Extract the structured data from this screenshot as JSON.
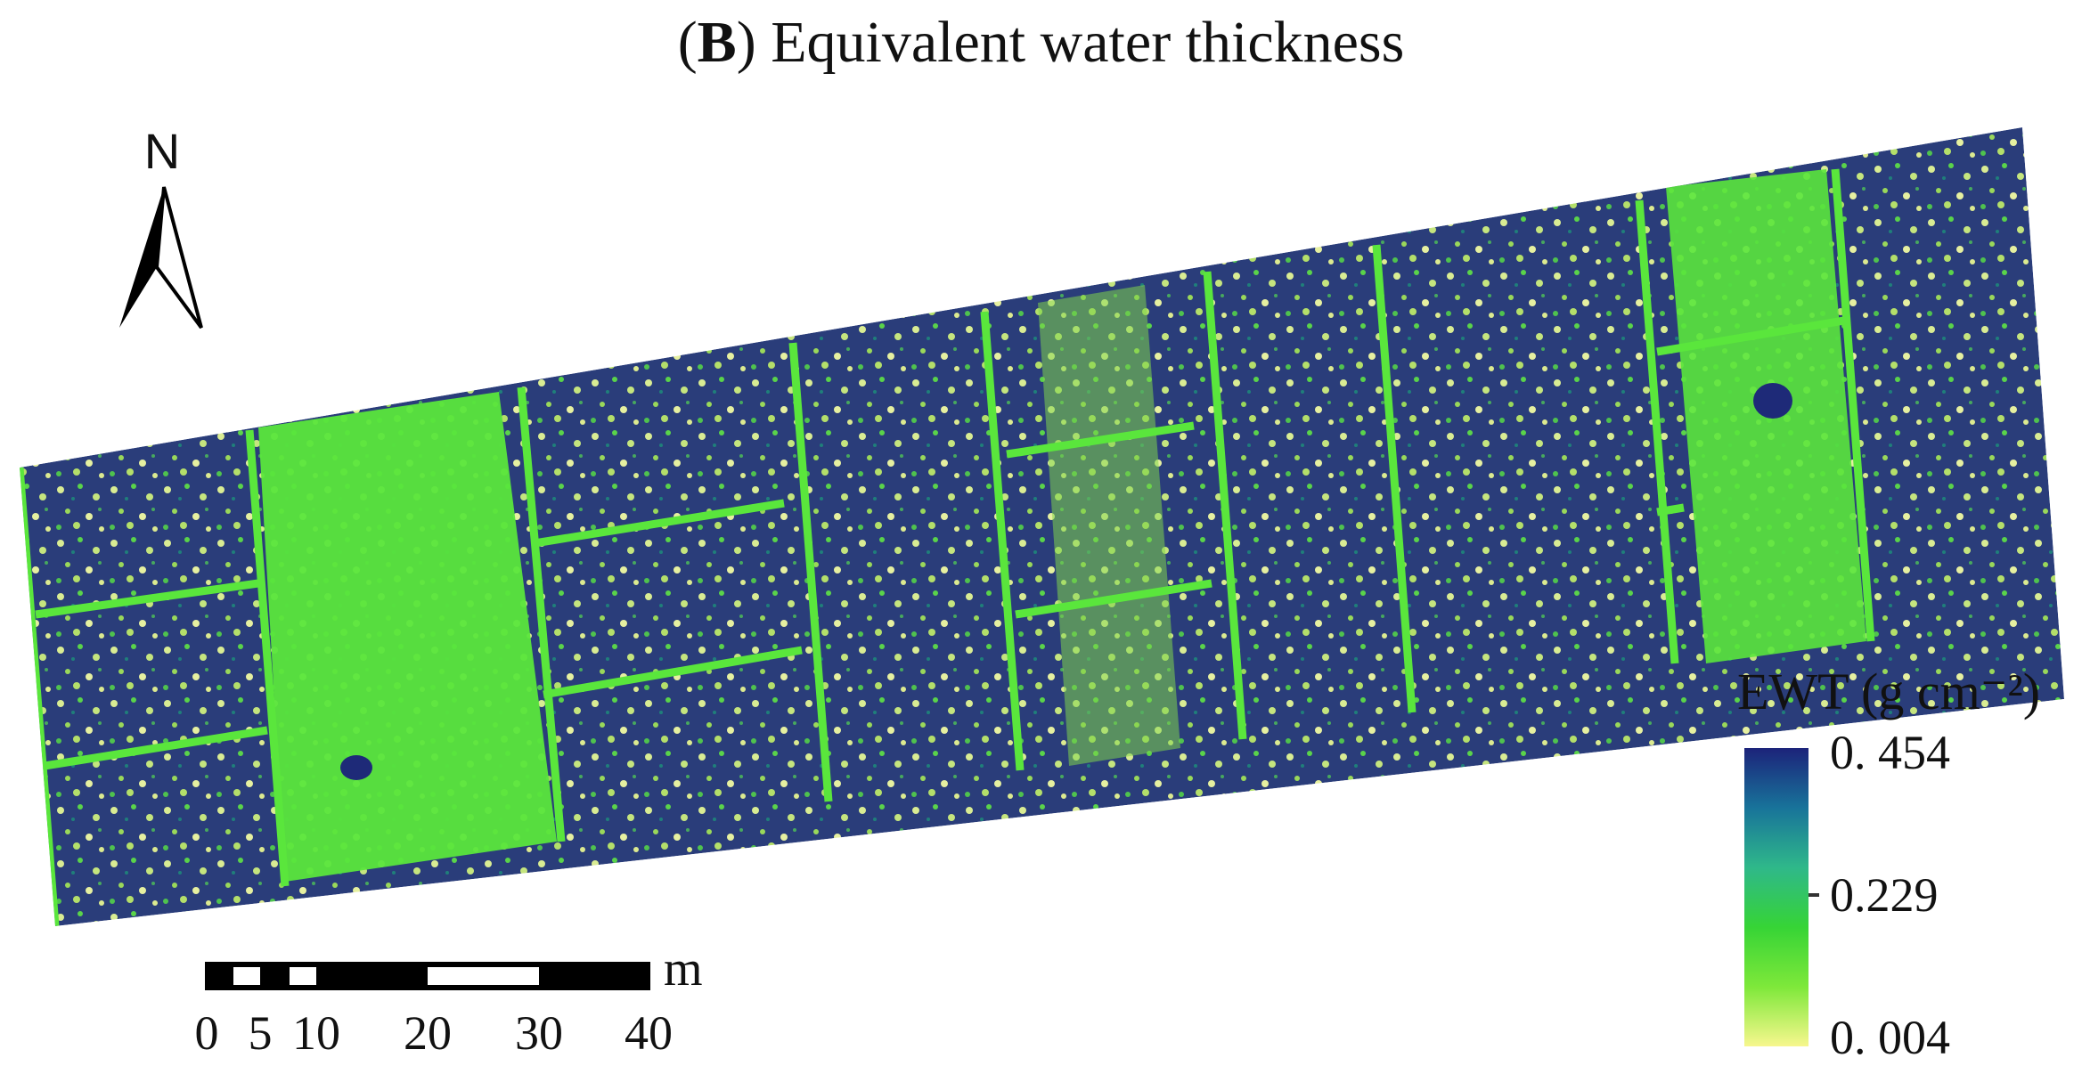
{
  "title": {
    "letter": "B",
    "text": "Equivalent water thickness"
  },
  "north_arrow": {
    "label": "N"
  },
  "legend": {
    "title": "EWT (g cm⁻²)",
    "ticks": [
      "0. 454",
      "0.229",
      "0. 004"
    ],
    "colors": [
      "#1c237a",
      "#18739a",
      "#2fb88a",
      "#36d436",
      "#7ee83a",
      "#f7f78e"
    ]
  },
  "scale_bar": {
    "unit": "m",
    "labels": [
      "0",
      "5",
      "10",
      "20",
      "30",
      "40"
    ]
  },
  "palette": {
    "field_green": "#5ae63c",
    "dark_blue": "#1e2a78",
    "light_yellow": "#e3ef9c"
  }
}
